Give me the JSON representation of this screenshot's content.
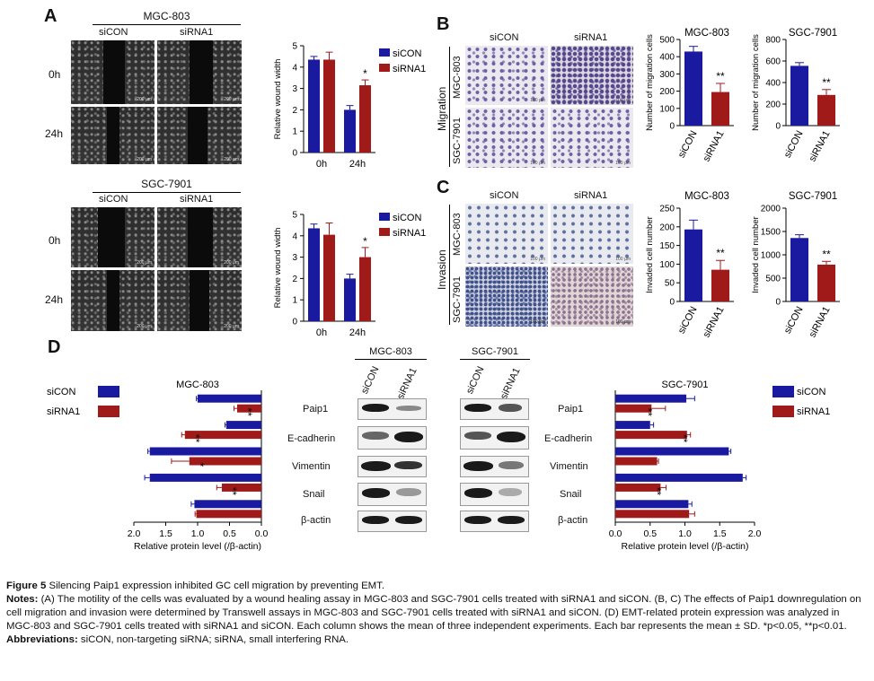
{
  "panels": {
    "A": {
      "label": "A",
      "top": {
        "cell_line": "MGC-803",
        "cond1": "siCON",
        "cond2": "siRNA1",
        "row0": "0h",
        "row1": "24h",
        "scale": "200 µm"
      },
      "bottom": {
        "cell_line": "SGC-7901",
        "cond1": "siCON",
        "cond2": "siRNA1",
        "row0": "0h",
        "row1": "24h",
        "scale": "200 µm"
      }
    },
    "B": {
      "label": "B",
      "cond1": "siCON",
      "cond2": "siRNA1",
      "side": "Migration",
      "row0": "MGC-803",
      "row1": "SGC-7901",
      "scale": "100 µm"
    },
    "C": {
      "label": "C",
      "cond1": "siCON",
      "cond2": "siRNA1",
      "side": "Invasion",
      "row0": "MGC-803",
      "row1": "SGC-7901",
      "scale": "100 µm"
    },
    "D": {
      "label": "D",
      "blot_left_title": "MGC-803",
      "blot_right_title": "SGC-7901",
      "lane1": "siCON",
      "lane2": "siRNA1",
      "proteins": [
        "Paip1",
        "E-cadherin",
        "Vimentin",
        "Snail",
        "β-actin"
      ],
      "proteins_right": [
        "Paip1",
        "E-cadherin",
        "Vimentin",
        "Snail",
        "β-actin"
      ]
    }
  },
  "caption": {
    "title_bold": "Figure 5",
    "title_text": " Silencing Paip1 expression inhibited GC cell migration by preventing EMT.",
    "notes_label": "Notes:",
    "notes_text": " (A) The motility of the cells was evaluated by a wound healing assay in MGC-803 and SGC-7901 cells treated with siRNA1 and siCON. (B, C) The effects of Paip1 downregulation on cell migration and invasion were determined by Transwell assays in MGC-803 and SGC-7901 cells treated with siRNA1 and siCON. (D) EMT-related protein expression was analyzed in MGC-803 and SGC-7901 cells treated with siRNA1 and siCON. Each column shows the mean of three independent experiments. Each bar represents the mean ± SD. *p<0.05, **p<0.01.",
    "abbr_label": "Abbreviations:",
    "abbr_text": " siCON, non-targeting siRNA; siRNA, small interfering RNA."
  },
  "colors": {
    "siCON": "#1a1aa0",
    "siRNA1": "#a01a1a"
  },
  "chart_data": [
    {
      "id": "A-top",
      "type": "bar",
      "title": "",
      "ylabel": "Relative wound width",
      "xlabel": "",
      "categories": [
        "0h",
        "24h"
      ],
      "ylim": [
        0,
        5
      ],
      "yticks": [
        0,
        1,
        2,
        3,
        4,
        5
      ],
      "legend": [
        "siCON",
        "siRNA1"
      ],
      "series": [
        {
          "name": "siCON",
          "values": [
            4.35,
            2.0
          ],
          "err": [
            0.15,
            0.2
          ]
        },
        {
          "name": "siRNA1",
          "values": [
            4.35,
            3.15
          ],
          "err": [
            0.35,
            0.25
          ]
        }
      ],
      "annotations": [
        {
          "category": "24h",
          "series": "siRNA1",
          "text": "*"
        }
      ]
    },
    {
      "id": "A-bottom",
      "type": "bar",
      "title": "",
      "ylabel": "Relative wound width",
      "xlabel": "",
      "categories": [
        "0h",
        "24h"
      ],
      "ylim": [
        0,
        5
      ],
      "yticks": [
        0,
        1,
        2,
        3,
        4,
        5
      ],
      "legend": [
        "siCON",
        "siRNA1"
      ],
      "series": [
        {
          "name": "siCON",
          "values": [
            4.35,
            2.0
          ],
          "err": [
            0.2,
            0.2
          ]
        },
        {
          "name": "siRNA1",
          "values": [
            4.05,
            3.0
          ],
          "err": [
            0.55,
            0.45
          ]
        }
      ],
      "annotations": [
        {
          "category": "24h",
          "series": "siRNA1",
          "text": "*"
        }
      ]
    },
    {
      "id": "B-MGC",
      "type": "bar",
      "title": "MGC-803",
      "ylabel": "Number of migration cells",
      "xlabel": "",
      "categories": [
        "siCON",
        "siRNA1"
      ],
      "ylim": [
        0,
        500
      ],
      "yticks": [
        0,
        100,
        200,
        300,
        400,
        500
      ],
      "series": [
        {
          "name": "",
          "values": [
            430,
            195
          ],
          "err": [
            30,
            50
          ],
          "colors": [
            "#1a1aa0",
            "#a01a1a"
          ]
        }
      ],
      "annotations": [
        {
          "category": "siRNA1",
          "text": "**"
        }
      ]
    },
    {
      "id": "B-SGC",
      "type": "bar",
      "title": "SGC-7901",
      "ylabel": "Number of migration cells",
      "xlabel": "",
      "categories": [
        "siCON",
        "siRNA1"
      ],
      "ylim": [
        0,
        800
      ],
      "yticks": [
        0,
        200,
        400,
        600,
        800
      ],
      "series": [
        {
          "name": "",
          "values": [
            555,
            285
          ],
          "err": [
            30,
            50
          ],
          "colors": [
            "#1a1aa0",
            "#a01a1a"
          ]
        }
      ],
      "annotations": [
        {
          "category": "siRNA1",
          "text": "**"
        }
      ]
    },
    {
      "id": "C-MGC",
      "type": "bar",
      "title": "MGC-803",
      "ylabel": "Invaded cell number",
      "xlabel": "",
      "categories": [
        "siCON",
        "siRNA1"
      ],
      "ylim": [
        0,
        250
      ],
      "yticks": [
        0,
        50,
        100,
        150,
        200,
        250
      ],
      "series": [
        {
          "name": "",
          "values": [
            193,
            85
          ],
          "err": [
            25,
            25
          ],
          "colors": [
            "#1a1aa0",
            "#a01a1a"
          ]
        }
      ],
      "annotations": [
        {
          "category": "siRNA1",
          "text": "**"
        }
      ]
    },
    {
      "id": "C-SGC",
      "type": "bar",
      "title": "SGC-7901",
      "ylabel": "Invaded cell number",
      "xlabel": "",
      "categories": [
        "siCON",
        "siRNA1"
      ],
      "ylim": [
        0,
        2000
      ],
      "yticks": [
        0,
        500,
        1000,
        1500,
        2000
      ],
      "series": [
        {
          "name": "",
          "values": [
            1360,
            790
          ],
          "err": [
            70,
            70
          ],
          "colors": [
            "#1a1aa0",
            "#a01a1a"
          ]
        }
      ],
      "annotations": [
        {
          "category": "siRNA1",
          "text": "**"
        }
      ]
    },
    {
      "id": "D-MGC",
      "type": "bar",
      "orientation": "horizontal",
      "reversed_x": true,
      "title": "MGC-803",
      "xlabel": "Relative protein level (/β-actin)",
      "ylabel": "",
      "categories": [
        "Paip1",
        "E-cadherin",
        "Vimentin",
        "Snail",
        "β-actin"
      ],
      "xlim": [
        0,
        2.0
      ],
      "xticks": [
        0,
        0.5,
        1.0,
        1.5,
        2.0
      ],
      "legend": [
        "siCON",
        "siRNA1"
      ],
      "series": [
        {
          "name": "siCON",
          "values": [
            1.0,
            0.55,
            1.75,
            1.75,
            1.05
          ],
          "err": [
            0.02,
            0.02,
            0.03,
            0.08,
            0.05
          ]
        },
        {
          "name": "siRNA1",
          "values": [
            0.38,
            1.2,
            1.13,
            0.62,
            1.02
          ],
          "err": [
            0.05,
            0.05,
            0.28,
            0.08,
            0.02
          ]
        }
      ],
      "annotations": [
        {
          "category": "Paip1",
          "series": "siRNA1",
          "text": "**"
        },
        {
          "category": "E-cadherin",
          "series": "siRNA1",
          "text": "**"
        },
        {
          "category": "Vimentin",
          "series": "siRNA1",
          "text": "*"
        },
        {
          "category": "Snail",
          "series": "siRNA1",
          "text": "**"
        }
      ]
    },
    {
      "id": "D-SGC",
      "type": "bar",
      "orientation": "horizontal",
      "title": "SGC-7901",
      "xlabel": "Relative protein level (/β-actin)",
      "ylabel": "",
      "categories": [
        "Paip1",
        "E-cadherin",
        "Vimentin",
        "Snail",
        "β-actin"
      ],
      "xlim": [
        0,
        2.0
      ],
      "xticks": [
        0,
        0.5,
        1.0,
        1.5,
        2.0
      ],
      "legend": [
        "siCON",
        "siRNA1"
      ],
      "series": [
        {
          "name": "siCON",
          "values": [
            1.02,
            0.5,
            1.63,
            1.83,
            1.05
          ],
          "err": [
            0.12,
            0.05,
            0.03,
            0.05,
            0.05
          ]
        },
        {
          "name": "siRNA1",
          "values": [
            0.52,
            1.03,
            0.6,
            0.65,
            1.06
          ],
          "err": [
            0.2,
            0.05,
            0.02,
            0.08,
            0.08
          ]
        }
      ],
      "annotations": [
        {
          "category": "Paip1",
          "series": "siRNA1",
          "text": "**"
        },
        {
          "category": "E-cadherin",
          "series": "siRNA1",
          "text": "**"
        },
        {
          "category": "Snail",
          "series": "siRNA1",
          "text": "**"
        }
      ]
    }
  ]
}
